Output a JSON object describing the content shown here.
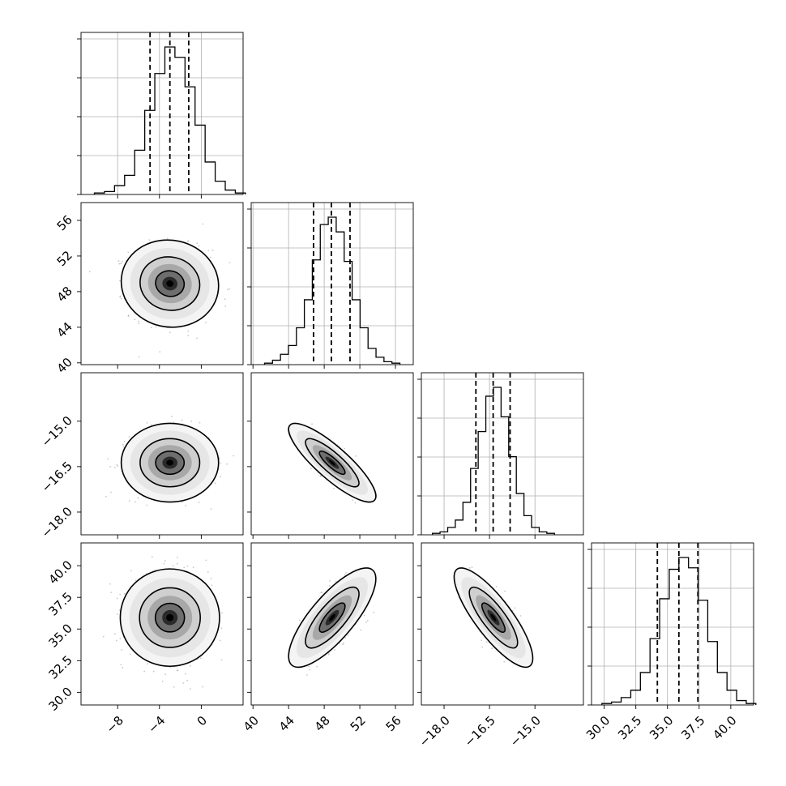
{
  "chart_data": {
    "type": "corner",
    "title": "",
    "grid": true,
    "colors": {
      "line": "#000000",
      "grid": "#b0b0b0",
      "points": "#9a9a9a",
      "quantile": "#000000"
    },
    "variables": [
      {
        "label": "",
        "mean": -3.0,
        "sd": 1.9,
        "range": [
          -11.5,
          4.0
        ],
        "quantiles": [
          -4.9,
          -3.0,
          -1.2
        ],
        "ticks": [
          -8,
          -4,
          0
        ],
        "tick_labels": [
          "−8",
          "−4",
          "0"
        ],
        "hist": [
          0.01,
          0.02,
          0.06,
          0.13,
          0.3,
          0.57,
          0.82,
          1.0,
          0.93,
          0.73,
          0.47,
          0.22,
          0.09,
          0.03,
          0.01
        ]
      },
      {
        "label": "",
        "mean": 48.9,
        "sd": 2.0,
        "range": [
          39.8,
          58.0
        ],
        "quantiles": [
          46.8,
          48.8,
          50.9
        ],
        "ticks": [
          40,
          44,
          48,
          52,
          56
        ],
        "tick_labels": [
          "40",
          "44",
          "48",
          "52",
          "56"
        ],
        "hist": [
          0.01,
          0.03,
          0.07,
          0.13,
          0.25,
          0.44,
          0.71,
          0.95,
          1.0,
          0.9,
          0.7,
          0.44,
          0.25,
          0.11,
          0.05,
          0.02,
          0.01
        ]
      },
      {
        "label": "",
        "mean": -16.37,
        "sd": 0.53,
        "range": [
          -18.75,
          -13.4
        ],
        "quantiles": [
          -16.95,
          -16.38,
          -15.82
        ],
        "ticks": [
          -18.0,
          -16.5,
          -15.0
        ],
        "tick_labels": [
          "−18.0",
          "−16.5",
          "−15.0"
        ],
        "hist": [
          0.01,
          0.02,
          0.05,
          0.1,
          0.22,
          0.45,
          0.7,
          0.94,
          1.0,
          0.8,
          0.53,
          0.28,
          0.13,
          0.05,
          0.02,
          0.01
        ]
      },
      {
        "label": "",
        "mean": 35.9,
        "sd": 1.6,
        "range": [
          29.0,
          41.8
        ],
        "quantiles": [
          34.2,
          35.9,
          37.4
        ],
        "ticks": [
          30.0,
          32.5,
          35.0,
          37.5,
          40.0
        ],
        "tick_labels": [
          "30.0",
          "32.5",
          "35.0",
          "37.5",
          "40.0"
        ],
        "hist": [
          0.01,
          0.02,
          0.05,
          0.1,
          0.22,
          0.45,
          0.72,
          0.92,
          1.0,
          0.93,
          0.71,
          0.43,
          0.22,
          0.1,
          0.03,
          0.01
        ]
      }
    ],
    "correlations": [
      {
        "pair": [
          0,
          1
        ],
        "r": -0.05
      },
      {
        "pair": [
          0,
          2
        ],
        "r": 0.0
      },
      {
        "pair": [
          1,
          2
        ],
        "r": -0.85
      },
      {
        "pair": [
          0,
          3
        ],
        "r": 0.0
      },
      {
        "pair": [
          1,
          3
        ],
        "r": 0.78
      },
      {
        "pair": [
          2,
          3
        ],
        "r": -0.82
      }
    ]
  }
}
